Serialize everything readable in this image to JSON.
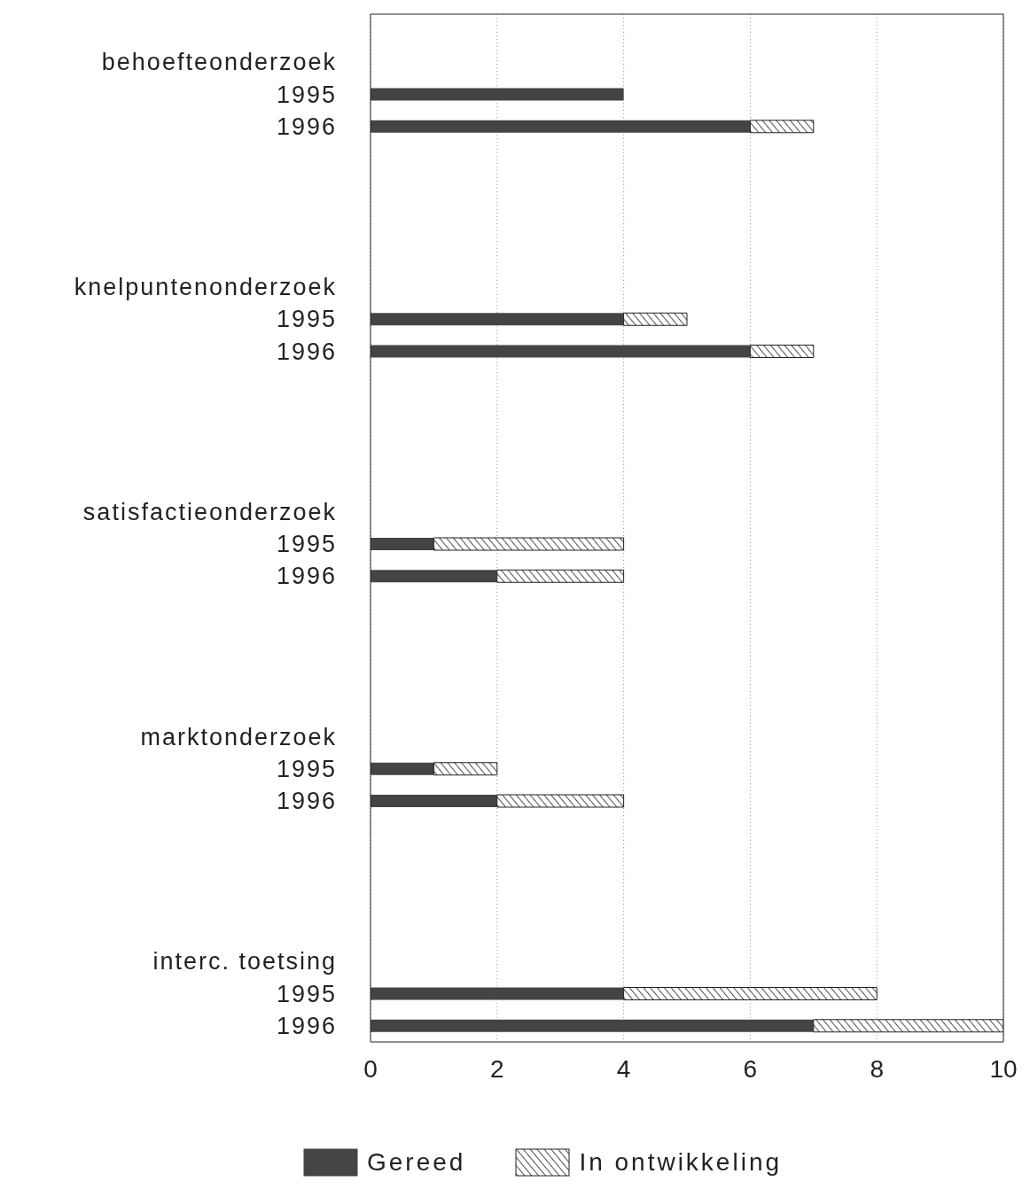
{
  "chart_data": {
    "type": "bar",
    "orientation": "horizontal",
    "stacked": true,
    "categories": [
      null,
      "behoefteonderzoek",
      "1995",
      "1996",
      null,
      null,
      null,
      null,
      "knelpuntenonderzoek",
      "1995",
      "1996",
      null,
      null,
      null,
      null,
      "satisfactieonderzoek",
      "1995",
      "1996",
      null,
      null,
      null,
      null,
      "marktonderzoek",
      "1995",
      "1996",
      null,
      null,
      null,
      null,
      "interc. toetsing",
      "1995",
      "1996"
    ],
    "series": [
      {
        "name": "Gereed",
        "color": "#444444",
        "values": [
          null,
          null,
          4,
          6,
          null,
          null,
          null,
          null,
          null,
          4,
          6,
          null,
          null,
          null,
          null,
          null,
          1,
          2,
          null,
          null,
          null,
          null,
          null,
          1,
          2,
          null,
          null,
          null,
          null,
          null,
          4,
          7
        ]
      },
      {
        "name": "In ontwikkeling",
        "color": "#222222",
        "values": [
          null,
          null,
          0,
          1,
          null,
          null,
          null,
          null,
          null,
          1,
          1,
          null,
          null,
          null,
          null,
          null,
          3,
          2,
          null,
          null,
          null,
          null,
          null,
          1,
          2,
          null,
          null,
          null,
          null,
          null,
          4,
          3
        ]
      }
    ],
    "xlim": [
      0,
      10
    ],
    "xticks": [
      0,
      2,
      4,
      6,
      8,
      10
    ],
    "grid": "x",
    "legend": "bottom"
  }
}
